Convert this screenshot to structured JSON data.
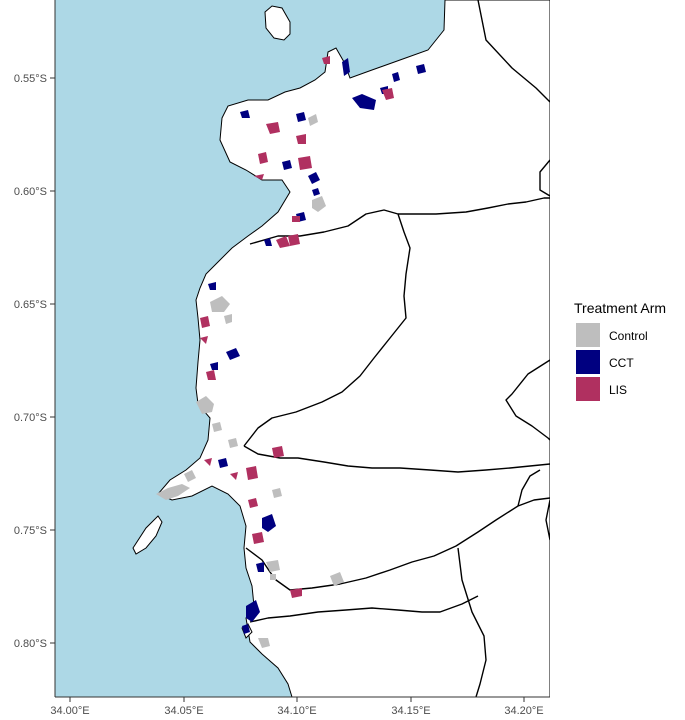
{
  "map": {
    "x_axis": {
      "ticks": [
        "34.00°E",
        "34.05°E",
        "34.10°E",
        "34.15°E",
        "34.20°E"
      ]
    },
    "y_axis": {
      "ticks": [
        "0.55°S",
        "0.60°S",
        "0.65°S",
        "0.70°S",
        "0.75°S",
        "0.80°S"
      ]
    }
  },
  "legend": {
    "title": "Treatment Arm",
    "items": [
      {
        "label": "Control",
        "color": "#bebebe"
      },
      {
        "label": "CCT",
        "color": "#000080"
      },
      {
        "label": "LIS",
        "color": "#b03060"
      }
    ]
  },
  "colors": {
    "water": "#add8e6",
    "land": "#ffffff",
    "boundary": "#000000"
  }
}
